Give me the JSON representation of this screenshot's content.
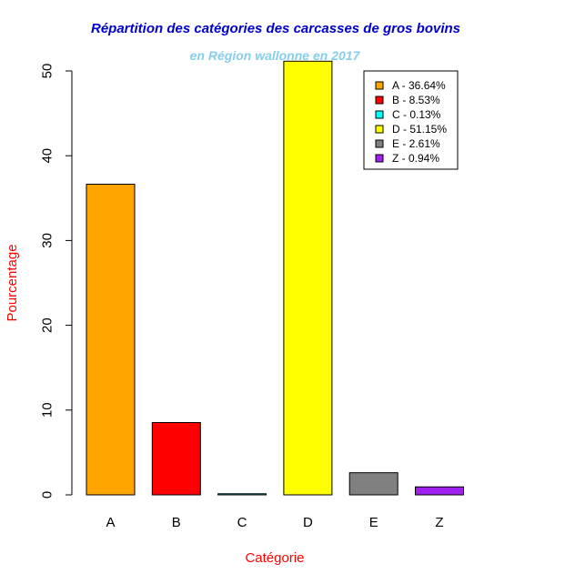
{
  "chart_data": {
    "type": "bar",
    "title": "Répartition des catégories des carcasses de gros bovins",
    "subtitle": "en Région wallonne en 2017",
    "xlabel": "Catégorie",
    "ylabel": "Pourcentage",
    "categories": [
      "A",
      "B",
      "C",
      "D",
      "E",
      "Z"
    ],
    "values": [
      36.64,
      8.53,
      0.13,
      51.15,
      2.61,
      0.94
    ],
    "colors": [
      "#FFA500",
      "#FF0000",
      "#00FFFF",
      "#FFFF00",
      "#808080",
      "#A020F0"
    ],
    "yticks": [
      "0",
      "10",
      "20",
      "30",
      "40",
      "50"
    ],
    "ylim": [
      0,
      52
    ],
    "grid": false,
    "legend": {
      "placement": "top-right",
      "entries": [
        "A - 36.64%",
        "B - 8.53%",
        "C - 0.13%",
        "D - 51.15%",
        "E - 2.61%",
        "Z - 0.94%"
      ]
    },
    "title_color": "#0000CD",
    "subtitle_color": "#87CEEB",
    "axis_label_color": "#FF0000"
  }
}
